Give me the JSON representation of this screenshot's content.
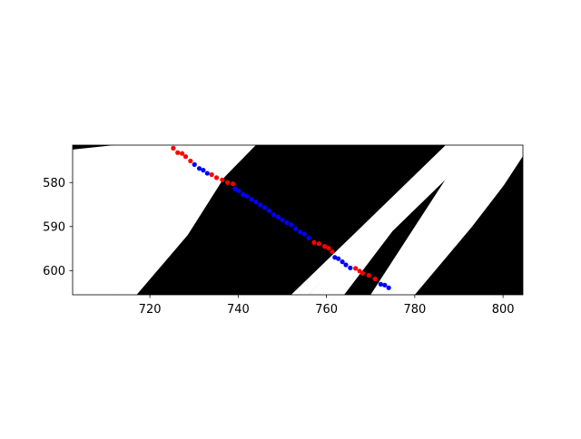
{
  "chart_data": {
    "type": "scatter",
    "title": "",
    "xlabel": "",
    "ylabel": "",
    "xlim": [
      702.5,
      804.5
    ],
    "ylim": [
      605.5,
      571.5
    ],
    "y_axis_inverted": true,
    "grid": false,
    "legend": "none",
    "x_ticks": [
      720,
      740,
      760,
      780,
      800
    ],
    "x_tick_labels": [
      "720",
      "740",
      "760",
      "780",
      "800"
    ],
    "y_ticks": [
      580,
      590,
      600
    ],
    "y_tick_labels": [
      "580",
      "590",
      "600"
    ],
    "background_image": {
      "description": "binary stripe image: black background with diagonal white stripes",
      "stripe_color": "#ffffff",
      "background_color": "#000000",
      "stripes": [
        {
          "points": [
            [
              702.5,
              572.5
            ],
            [
              712,
              571.5
            ],
            [
              740,
              571.5
            ],
            [
              705,
              605.5
            ],
            [
              702.5,
              605.5
            ]
          ]
        },
        {
          "points": [
            [
              722,
              571.5
            ],
            [
              732,
              571.5
            ],
            [
              712,
              592
            ],
            [
              700.5,
              605.5
            ],
            [
              700.5,
              600
            ]
          ]
        },
        {
          "points": [
            [
              738,
              571.5
            ],
            [
              744,
              571.5
            ],
            [
              723,
              593
            ],
            [
              712,
              605.5
            ],
            [
              702.5,
              605.5
            ]
          ]
        },
        {
          "points": [
            [
              736,
              571.5
            ],
            [
              744,
              571.5
            ],
            [
              738,
              577
            ],
            [
              720,
              605.5
            ],
            [
              712,
              605.5
            ]
          ]
        },
        {
          "points": [
            [
              763,
              584
            ],
            [
              790,
              571.5
            ],
            [
              766,
              594
            ],
            [
              756,
              605.5
            ],
            [
              749,
              605.5
            ]
          ]
        },
        {
          "points": [
            [
              785,
              571.5
            ],
            [
              795,
              571.5
            ],
            [
              775,
              591
            ],
            [
              764,
              605.5
            ],
            [
              756,
              605.5
            ]
          ]
        },
        {
          "points": [
            [
              792,
              571.5
            ],
            [
              804.5,
              571.5
            ],
            [
              804.5,
              575
            ],
            [
              793,
              590
            ],
            [
              780,
              605.5
            ],
            [
              770,
              605.5
            ]
          ]
        }
      ],
      "black_blocks": [
        {
          "points": [
            [
              746,
              571.5
            ],
            [
              787,
              571.5
            ],
            [
              768,
              590
            ],
            [
              752,
              605.5
            ],
            [
              717,
              605.5
            ]
          ]
        },
        {
          "points": [
            [
              777,
              571.5
            ],
            [
              785,
              571.5
            ],
            [
              778,
              579
            ],
            [
              767,
              589
            ],
            [
              762,
              591
            ],
            [
              756,
              596
            ],
            [
              748,
              605.5
            ],
            [
              739,
              605.5
            ]
          ]
        },
        {
          "points": [
            [
              804.5,
              574
            ],
            [
              804.5,
              605.5
            ],
            [
              784,
              605.5
            ]
          ]
        }
      ]
    },
    "series": [
      {
        "name": "",
        "color": "#ff0000",
        "marker": "circle",
        "points": [
          [
            725.3,
            572.2
          ],
          [
            726.3,
            573.2
          ],
          [
            727.3,
            573.4
          ],
          [
            728.1,
            574.1
          ],
          [
            729.2,
            575.1
          ],
          [
            734.0,
            578.2
          ],
          [
            735.1,
            578.9
          ],
          [
            736.4,
            579.4
          ],
          [
            737.6,
            580.0
          ],
          [
            738.8,
            580.3
          ],
          [
            757.2,
            593.6
          ],
          [
            758.3,
            593.9
          ],
          [
            759.6,
            594.5
          ],
          [
            760.5,
            594.9
          ],
          [
            761.3,
            595.7
          ],
          [
            766.6,
            599.5
          ],
          [
            767.5,
            600.1
          ],
          [
            768.2,
            600.6
          ],
          [
            769.6,
            601.1
          ],
          [
            771.0,
            601.9
          ]
        ]
      },
      {
        "name": "",
        "color": "#0000ff",
        "marker": "circle",
        "points": [
          [
            730.1,
            575.9
          ],
          [
            731.2,
            576.8
          ],
          [
            732.1,
            577.2
          ],
          [
            733.0,
            577.9
          ],
          [
            739.3,
            581.4
          ],
          [
            740.1,
            581.9
          ],
          [
            741.1,
            582.7
          ],
          [
            742.0,
            583.1
          ],
          [
            743.0,
            583.8
          ],
          [
            744.0,
            584.4
          ],
          [
            745.0,
            585.1
          ],
          [
            746.0,
            585.7
          ],
          [
            747.0,
            586.4
          ],
          [
            748.0,
            587.3
          ],
          [
            749.0,
            587.8
          ],
          [
            750.0,
            588.5
          ],
          [
            751.0,
            589.1
          ],
          [
            752.0,
            589.6
          ],
          [
            753.0,
            590.5
          ],
          [
            754.0,
            591.2
          ],
          [
            755.0,
            591.7
          ],
          [
            756.0,
            592.6
          ],
          [
            761.9,
            597.0
          ],
          [
            762.7,
            597.3
          ],
          [
            763.6,
            598.0
          ],
          [
            764.4,
            598.7
          ],
          [
            765.4,
            599.4
          ],
          [
            772.3,
            603.1
          ],
          [
            773.2,
            603.3
          ],
          [
            774.1,
            603.9
          ]
        ]
      }
    ]
  }
}
